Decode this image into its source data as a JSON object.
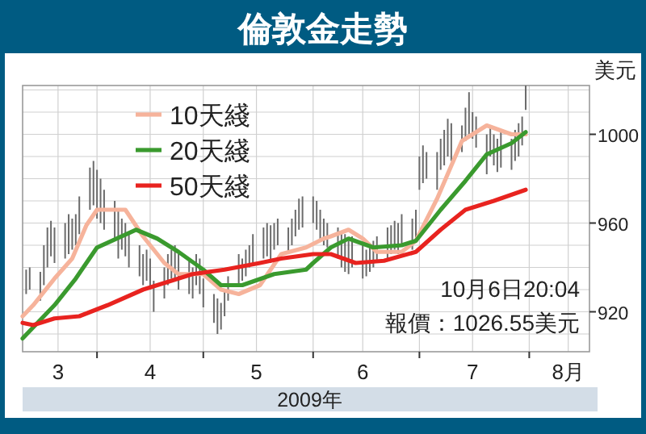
{
  "chart_data": {
    "type": "line",
    "title": "倫敦金走勢",
    "ylabel": "美元",
    "xlabel": "2009年",
    "annotations": [
      "10月6日20:04",
      "報價：1026.55美元"
    ],
    "xlim": [
      "2009-03-11",
      "2009-08-18"
    ],
    "xticks": [
      {
        "value": "2009-03-21",
        "label": "3"
      },
      {
        "value": "2009-04-01",
        "label": null
      },
      {
        "value": "2009-04-16",
        "label": "4"
      },
      {
        "value": "2009-05-01",
        "label": null
      },
      {
        "value": "2009-05-16",
        "label": "5"
      },
      {
        "value": "2009-06-01",
        "label": null
      },
      {
        "value": "2009-06-15",
        "label": "6"
      },
      {
        "value": "2009-07-01",
        "label": null
      },
      {
        "value": "2009-07-16",
        "label": "7"
      },
      {
        "value": "2009-08-01",
        "label": null
      },
      {
        "value": "2009-08-12",
        "label": "8月"
      }
    ],
    "ylim": [
      902,
      1022
    ],
    "yticks": [
      {
        "value": 910,
        "label": null
      },
      920,
      {
        "value": 930,
        "label": null
      },
      {
        "value": 940,
        "label": null
      },
      {
        "value": 950,
        "label": null
      },
      960,
      {
        "value": 970,
        "label": null
      },
      {
        "value": 980,
        "label": null
      },
      {
        "value": 990,
        "label": null
      },
      1000,
      {
        "value": 1010,
        "label": null
      },
      {
        "value": 1020,
        "label": null
      }
    ],
    "grid": true,
    "legend": "top left",
    "series": [
      {
        "type": "bar",
        "color": "#6b6b6b",
        "x": [
          "2009-03-12",
          "2009-03-13",
          "2009-03-16",
          "2009-03-17",
          "2009-03-18",
          "2009-03-19",
          "2009-03-20",
          "2009-03-23",
          "2009-03-24",
          "2009-03-25",
          "2009-03-26",
          "2009-03-27",
          "2009-03-30",
          "2009-03-31",
          "2009-04-01",
          "2009-04-02",
          "2009-04-03",
          "2009-04-06",
          "2009-04-07",
          "2009-04-08",
          "2009-04-09",
          "2009-04-10",
          "2009-04-13",
          "2009-04-14",
          "2009-04-15",
          "2009-04-16",
          "2009-04-17",
          "2009-04-20",
          "2009-04-21",
          "2009-04-22",
          "2009-04-23",
          "2009-04-24",
          "2009-04-27",
          "2009-04-28",
          "2009-04-29",
          "2009-04-30",
          "2009-05-01",
          "2009-05-04",
          "2009-05-05",
          "2009-05-06",
          "2009-05-07",
          "2009-05-08",
          "2009-05-11",
          "2009-05-12",
          "2009-05-13",
          "2009-05-14",
          "2009-05-15",
          "2009-05-18",
          "2009-05-19",
          "2009-05-20",
          "2009-05-21",
          "2009-05-22",
          "2009-05-25",
          "2009-05-26",
          "2009-05-27",
          "2009-05-28",
          "2009-05-29",
          "2009-06-01",
          "2009-06-02",
          "2009-06-03",
          "2009-06-04",
          "2009-06-05",
          "2009-06-08",
          "2009-06-09",
          "2009-06-10",
          "2009-06-11",
          "2009-06-12",
          "2009-06-15",
          "2009-06-16",
          "2009-06-17",
          "2009-06-18",
          "2009-06-19",
          "2009-06-22",
          "2009-06-23",
          "2009-06-24",
          "2009-06-25",
          "2009-06-26",
          "2009-06-29",
          "2009-06-30",
          "2009-07-01",
          "2009-07-02",
          "2009-07-03",
          "2009-07-06",
          "2009-07-07",
          "2009-07-08",
          "2009-07-09",
          "2009-07-10",
          "2009-07-13",
          "2009-07-14",
          "2009-07-15",
          "2009-07-16",
          "2009-07-17",
          "2009-07-20",
          "2009-07-21",
          "2009-07-22",
          "2009-07-23",
          "2009-07-24",
          "2009-07-27",
          "2009-07-28",
          "2009-07-29",
          "2009-07-30",
          "2009-07-31"
        ],
        "base": [
          928,
          930,
          925,
          932,
          940,
          945,
          942,
          944,
          946,
          948,
          950,
          955,
          966,
          968,
          962,
          960,
          957,
          952,
          944,
          948,
          945,
          940,
          936,
          932,
          934,
          930,
          920,
          926,
          932,
          935,
          934,
          930,
          928,
          926,
          932,
          928,
          922,
          915,
          910,
          912,
          918,
          925,
          932,
          934,
          936,
          940,
          942,
          944,
          945,
          942,
          948,
          950,
          946,
          950,
          954,
          957,
          958,
          960,
          957,
          952,
          950,
          949,
          944,
          940,
          938,
          937,
          940,
          935,
          936,
          938,
          940,
          942,
          944,
          946,
          948,
          946,
          950,
          948,
          952,
          975,
          978,
          980,
          975,
          984,
          986,
          990,
          988,
          992,
          997,
          1000,
          998,
          994,
          982,
          990,
          986,
          983,
          985,
          984,
          988,
          990,
          995,
          1011
        ],
        "values": [
          11,
          10,
          13,
          18,
          18,
          16,
          16,
          16,
          18,
          14,
          14,
          17,
          19,
          20,
          22,
          20,
          18,
          18,
          22,
          14,
          15,
          16,
          14,
          14,
          14,
          14,
          14,
          14,
          14,
          13,
          16,
          16,
          16,
          14,
          14,
          16,
          13,
          13,
          16,
          12,
          12,
          11,
          14,
          10,
          12,
          10,
          13,
          14,
          15,
          17,
          12,
          12,
          12,
          12,
          12,
          14,
          14,
          12,
          13,
          14,
          12,
          11,
          14,
          16,
          17,
          15,
          14,
          15,
          12,
          12,
          12,
          12,
          14,
          13,
          13,
          14,
          14,
          14,
          14,
          15,
          17,
          12,
          17,
          14,
          16,
          17,
          17,
          12,
          15,
          19,
          12,
          14,
          18,
          14,
          14,
          15,
          17,
          14,
          14,
          15,
          13,
          11
        ]
      },
      {
        "name": "10天綫",
        "color": "#f6b39b",
        "x": [
          "2009-03-11",
          "2009-03-14",
          "2009-03-20",
          "2009-03-25",
          "2009-03-29",
          "2009-04-01",
          "2009-04-09",
          "2009-04-14",
          "2009-04-20",
          "2009-04-24",
          "2009-05-01",
          "2009-05-06",
          "2009-05-11",
          "2009-05-17",
          "2009-05-23",
          "2009-05-30",
          "2009-06-04",
          "2009-06-06",
          "2009-06-11",
          "2009-06-15",
          "2009-06-19",
          "2009-06-26",
          "2009-06-30",
          "2009-07-06",
          "2009-07-13",
          "2009-07-20",
          "2009-07-27",
          "2009-07-31"
        ],
        "values": [
          918,
          923,
          935,
          944,
          959,
          966,
          966,
          954,
          942,
          937,
          937,
          930,
          928,
          932,
          946,
          949,
          953,
          954,
          957,
          953,
          947,
          947,
          952,
          971,
          997,
          1004,
          1000,
          1000
        ]
      },
      {
        "name": "20天綫",
        "color": "#3a9a2e",
        "x": [
          "2009-03-11",
          "2009-03-20",
          "2009-03-26",
          "2009-04-01",
          "2009-04-12",
          "2009-04-18",
          "2009-04-24",
          "2009-05-01",
          "2009-05-06",
          "2009-05-12",
          "2009-05-21",
          "2009-05-30",
          "2009-06-01",
          "2009-06-06",
          "2009-06-11",
          "2009-06-18",
          "2009-06-26",
          "2009-06-30",
          "2009-07-07",
          "2009-07-14",
          "2009-07-20",
          "2009-07-27",
          "2009-07-31"
        ],
        "values": [
          908,
          923,
          935,
          949,
          957,
          953,
          947,
          939,
          932,
          932,
          937,
          939,
          942,
          949,
          953,
          949,
          950,
          952,
          966,
          979,
          991,
          996,
          1001
        ]
      },
      {
        "name": "50天綫",
        "color": "#e8231f",
        "x": [
          "2009-03-11",
          "2009-03-14",
          "2009-03-20",
          "2009-03-27",
          "2009-04-04",
          "2009-04-14",
          "2009-04-24",
          "2009-04-28",
          "2009-05-07",
          "2009-05-17",
          "2009-05-23",
          "2009-06-01",
          "2009-06-06",
          "2009-06-13",
          "2009-06-21",
          "2009-06-30",
          "2009-07-07",
          "2009-07-14",
          "2009-07-22",
          "2009-07-31"
        ],
        "values": [
          915,
          914,
          917,
          918,
          923,
          930,
          935,
          937,
          939,
          942,
          944,
          946,
          946,
          942,
          943,
          947,
          957,
          966,
          970,
          975
        ]
      }
    ]
  }
}
